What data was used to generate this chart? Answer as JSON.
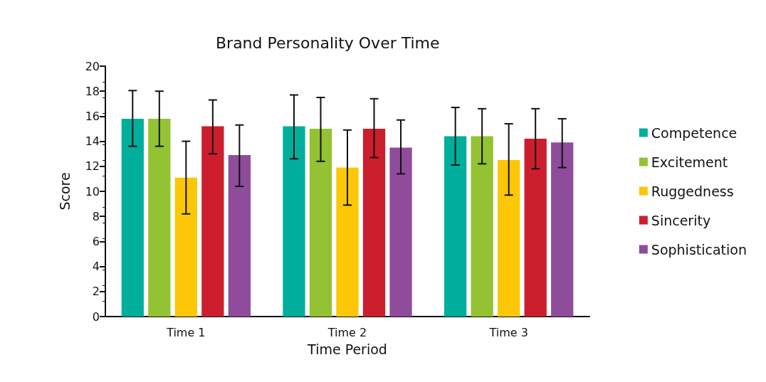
{
  "chart_data": {
    "type": "bar",
    "title": "Brand Personality Over Time",
    "xlabel": "Time Period",
    "ylabel": "Score",
    "categories": [
      "Time 1",
      "Time 2",
      "Time 3"
    ],
    "series": [
      {
        "name": "Competence",
        "color": "#00ae9c",
        "values": [
          15.8,
          15.2,
          14.4
        ],
        "errors": [
          [
            13.6,
            18.05
          ],
          [
            12.6,
            17.7
          ],
          [
            12.1,
            16.7
          ]
        ]
      },
      {
        "name": "Excitement",
        "color": "#93c232",
        "values": [
          15.8,
          15.0,
          14.4
        ],
        "errors": [
          [
            13.6,
            18.0
          ],
          [
            12.4,
            17.5
          ],
          [
            12.2,
            16.6
          ]
        ]
      },
      {
        "name": "Ruggedness",
        "color": "#fcc707",
        "values": [
          11.1,
          11.9,
          12.5
        ],
        "errors": [
          [
            8.2,
            14.0
          ],
          [
            8.9,
            14.9
          ],
          [
            9.7,
            15.4
          ]
        ]
      },
      {
        "name": "Sincerity",
        "color": "#cc1e2d",
        "values": [
          15.2,
          15.0,
          14.2
        ],
        "errors": [
          [
            13.0,
            17.3
          ],
          [
            12.7,
            17.4
          ],
          [
            11.8,
            16.6
          ]
        ]
      },
      {
        "name": "Sophistication",
        "color": "#8e4c9b",
        "values": [
          12.9,
          13.5,
          13.9
        ],
        "errors": [
          [
            10.4,
            15.3
          ],
          [
            11.4,
            15.7
          ],
          [
            11.9,
            15.8
          ]
        ]
      }
    ],
    "ylim": [
      0,
      20
    ],
    "yticks": [
      0,
      2,
      4,
      6,
      8,
      10,
      12,
      14,
      16,
      18,
      20
    ],
    "grid": false,
    "legend": "right"
  }
}
